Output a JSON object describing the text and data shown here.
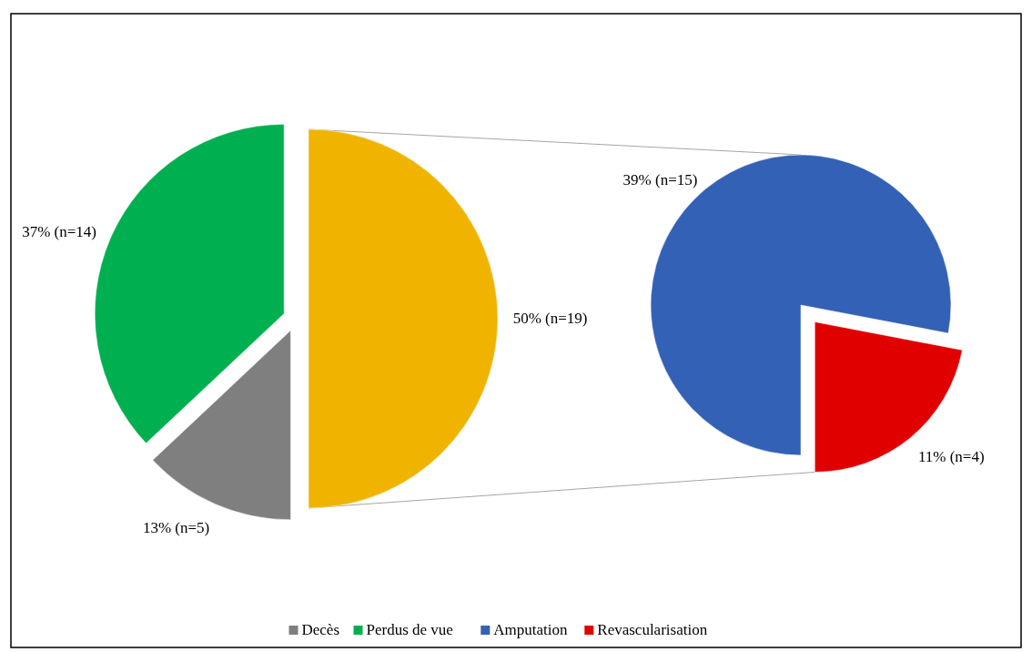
{
  "chart_data": [
    {
      "type": "pie",
      "categories": [
        "Decès",
        "Perdus de vue",
        null
      ],
      "values": [
        13,
        37,
        50
      ],
      "value_labels": [
        "13% (n=5)",
        "37% (n=14)",
        "50% (n=19)"
      ],
      "colors": [
        "#7f7f7f",
        "#00b050",
        "#f0b400"
      ],
      "legend": "bottom"
    },
    {
      "type": "pie",
      "categories": [
        "Amputation",
        "Revascularisation"
      ],
      "values": [
        39,
        11
      ],
      "value_labels": [
        "39% (n=15)",
        "11% (n=4)"
      ],
      "colors": [
        "#3361b5",
        "#e00000"
      ],
      "legend": "bottom"
    }
  ]
}
